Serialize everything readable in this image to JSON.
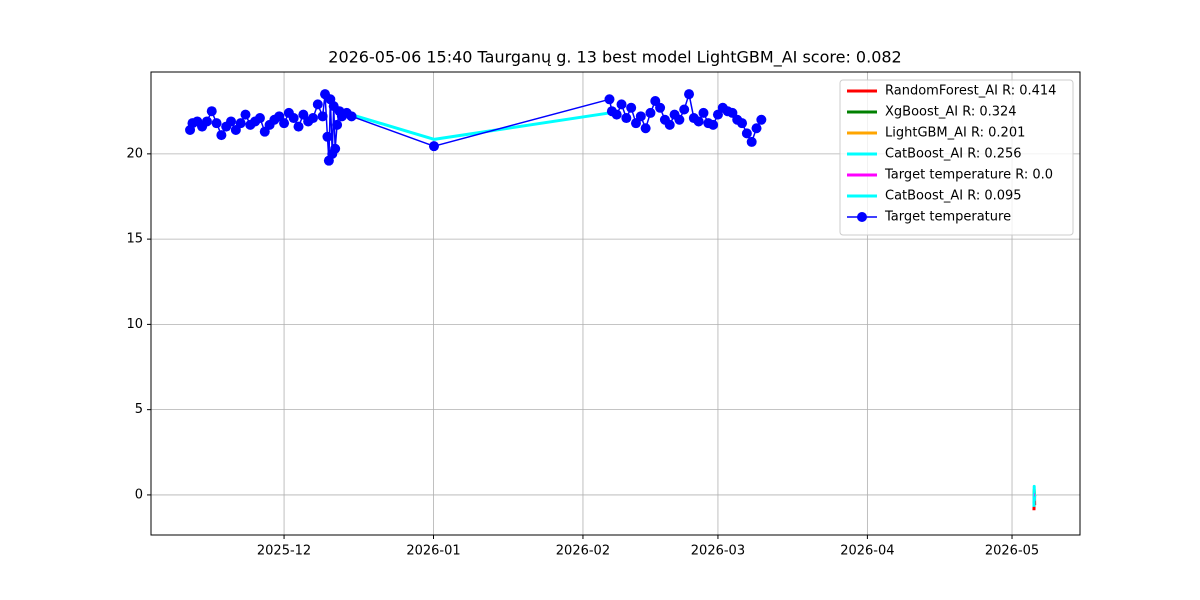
{
  "chart_data": {
    "type": "line",
    "title": "2026-05-06 15:40 Taurganų g. 13 best model LightGBM_AI score: 0.082",
    "xlim": [
      20395.4,
      20588.1
    ],
    "ylim": [
      -2.35,
      24.8
    ],
    "xticks": [
      {
        "value": 20423,
        "label": "2025-12"
      },
      {
        "value": 20454,
        "label": "2026-01"
      },
      {
        "value": 20485,
        "label": "2026-02"
      },
      {
        "value": 20513,
        "label": "2026-03"
      },
      {
        "value": 20544,
        "label": "2026-04"
      },
      {
        "value": 20574,
        "label": "2026-05"
      }
    ],
    "yticks": [
      0,
      5,
      10,
      15,
      20
    ],
    "grid": true,
    "legend": "upper right",
    "series": [
      {
        "name": "RandomForest_AI R: 0.414",
        "color": "#ff0000",
        "x": [
          20578.55,
          20578.6,
          20578.65,
          20578.7
        ],
        "values": [
          -0.9,
          -0.3,
          0.1,
          -0.6
        ]
      },
      {
        "name": "XgBoost_AI R: 0.324",
        "color": "#008000",
        "x": [
          20578.55,
          20578.6,
          20578.65,
          20578.7
        ],
        "values": [
          -0.5,
          0.2,
          -0.2,
          0.0
        ]
      },
      {
        "name": "LightGBM_AI R: 0.201",
        "color": "#ffa500",
        "x": [
          20578.55,
          20578.6,
          20578.65,
          20578.7
        ],
        "values": [
          -0.4,
          0.3,
          -0.1,
          -0.2
        ]
      },
      {
        "name": "CatBoost_AI R: 0.256",
        "color": "#00ffff",
        "x": [
          20578.55,
          20578.6,
          20578.65,
          20578.7
        ],
        "values": [
          -0.7,
          0.5,
          -0.3,
          0.0
        ]
      },
      {
        "name": "Target temperature R: 0.0",
        "color": "#ff00ff",
        "x": [
          20578.55,
          20578.6,
          20578.65,
          20578.7
        ],
        "values": [
          0,
          0,
          0,
          0
        ]
      },
      {
        "name": "CatBoost_AI R: 0.095",
        "color": "#00ffff",
        "x": [
          20437,
          20454.1,
          20490.5
        ],
        "values": [
          22.3,
          20.85,
          22.4
        ]
      },
      {
        "name": "Target temperature",
        "color": "#0000ff",
        "marker": "o",
        "x": [
          20403.5,
          20404,
          20405,
          20406,
          20407,
          20408,
          20409,
          20410,
          20411,
          20412,
          20413,
          20414,
          20415,
          20416,
          20417,
          20418,
          20419,
          20420,
          20421,
          20422,
          20423,
          20424,
          20425,
          20426,
          20427,
          20428,
          20429,
          20430,
          20431,
          20431.5,
          20432,
          20432.3,
          20432.6,
          20433,
          20433.3,
          20433.6,
          20434,
          20434.5,
          20435,
          20436,
          20437,
          20454.1,
          20490.5,
          20491,
          20492,
          20493,
          20494,
          20495,
          20496,
          20497,
          20498,
          20499,
          20500,
          20501,
          20502,
          20503,
          20504,
          20505,
          20506,
          20507,
          20508,
          20509,
          20510,
          20511,
          20512,
          20513,
          20514,
          20515,
          20516,
          20517,
          20518,
          20519,
          20520,
          20521,
          20522
        ],
        "values": [
          21.4,
          21.8,
          21.9,
          21.6,
          21.9,
          22.5,
          21.8,
          21.1,
          21.6,
          21.9,
          21.4,
          21.8,
          22.3,
          21.7,
          21.9,
          22.1,
          21.3,
          21.7,
          22.0,
          22.2,
          21.8,
          22.4,
          22.1,
          21.6,
          22.3,
          21.9,
          22.1,
          22.9,
          22.2,
          23.5,
          21.0,
          19.6,
          23.2,
          20.0,
          22.8,
          20.3,
          21.7,
          22.5,
          22.2,
          22.4,
          22.2,
          20.45,
          23.2,
          22.5,
          22.3,
          22.9,
          22.1,
          22.7,
          21.8,
          22.2,
          21.5,
          22.4,
          23.1,
          22.7,
          22.0,
          21.7,
          22.3,
          22.0,
          22.6,
          23.5,
          22.1,
          21.9,
          22.4,
          21.8,
          21.7,
          22.3,
          22.7,
          22.5,
          22.4,
          22.0,
          21.8,
          21.2,
          20.7,
          21.5,
          22.0
        ]
      }
    ]
  }
}
